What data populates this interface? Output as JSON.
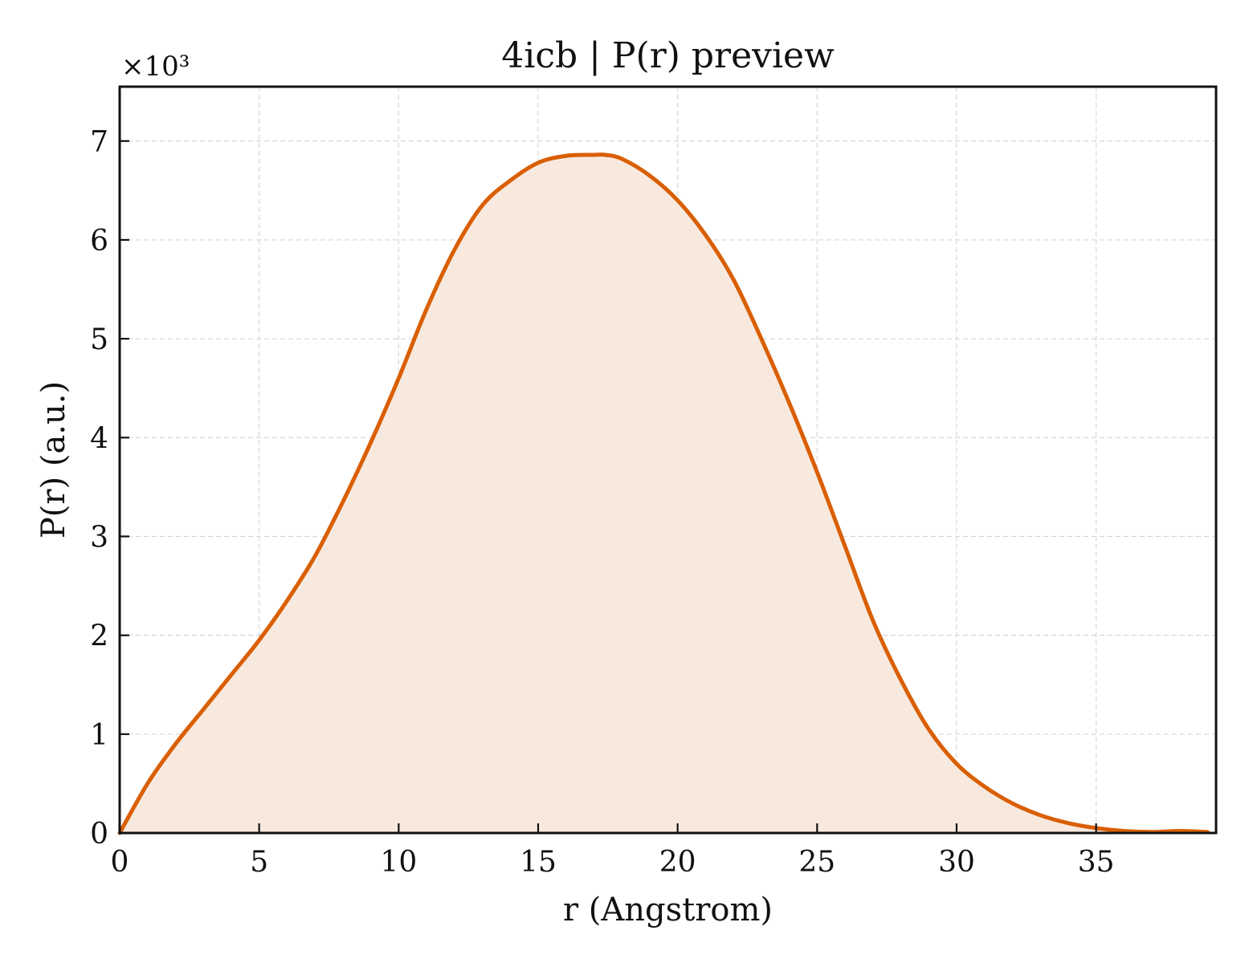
{
  "chart_data": {
    "type": "area",
    "title": "4icb | P(r) preview",
    "xlabel": "r (Angstrom)",
    "ylabel": "P(r) (a.u.)",
    "y_offset_label": "×10³",
    "y_scale_factor": 1000,
    "xlim": [
      0,
      39.3
    ],
    "ylim": [
      0,
      7.55
    ],
    "x_ticks": [
      0,
      5,
      10,
      15,
      20,
      25,
      30,
      35
    ],
    "y_ticks": [
      0,
      1,
      2,
      3,
      4,
      5,
      6,
      7
    ],
    "grid": true,
    "line_color": "#d95f02",
    "fill_color": "#f8e9df",
    "series": [
      {
        "x": [
          0,
          1,
          2,
          3,
          4,
          5,
          6,
          7,
          8,
          9,
          10,
          11,
          12,
          13,
          14,
          15,
          16,
          17,
          17.4,
          18,
          19,
          20,
          21,
          22,
          23,
          24,
          25,
          26,
          27,
          28,
          29,
          30,
          31,
          32,
          33,
          34,
          35,
          36,
          37,
          38,
          39
        ],
        "y": [
          0,
          0.5,
          0.9,
          1.25,
          1.6,
          1.95,
          2.35,
          2.8,
          3.35,
          3.95,
          4.6,
          5.3,
          5.9,
          6.35,
          6.6,
          6.78,
          6.85,
          6.86,
          6.86,
          6.82,
          6.65,
          6.4,
          6.05,
          5.6,
          5.0,
          4.35,
          3.65,
          2.9,
          2.15,
          1.55,
          1.05,
          0.7,
          0.47,
          0.3,
          0.18,
          0.1,
          0.05,
          0.02,
          0.01,
          0.02,
          0.01
        ]
      }
    ]
  }
}
